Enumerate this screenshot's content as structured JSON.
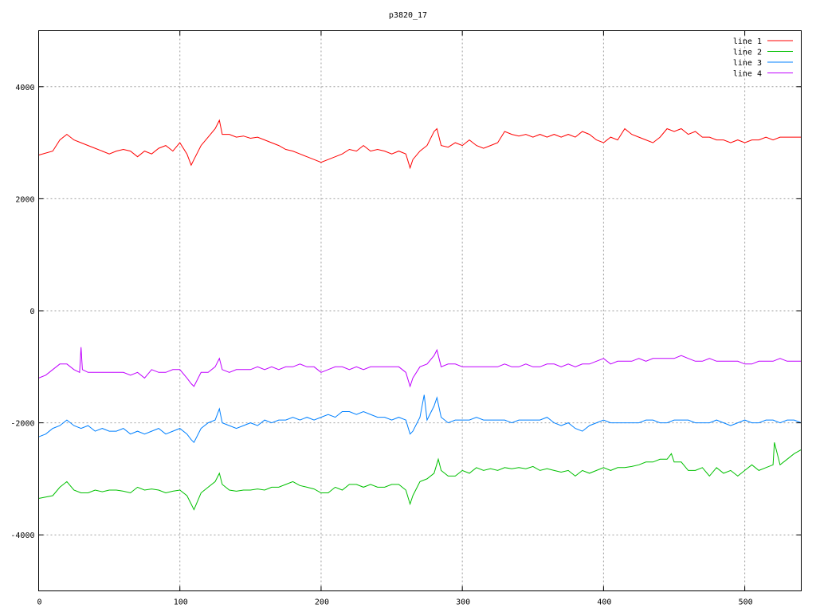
{
  "chart_data": {
    "type": "line",
    "title": "p3820_17",
    "xlabel": "",
    "ylabel": "",
    "xlim": [
      0,
      540
    ],
    "ylim": [
      -5000,
      5000
    ],
    "grid": true,
    "legend_position": "top-right",
    "x_ticks": [
      0,
      100,
      200,
      300,
      400,
      500
    ],
    "x_tick_labels": [
      "0",
      "100",
      "200",
      "300",
      "400",
      "500"
    ],
    "y_ticks": [
      -4000,
      -2000,
      0,
      2000,
      4000
    ],
    "y_tick_labels": [
      "-4000",
      "-2000",
      "0",
      "2000",
      "4000"
    ],
    "series": [
      {
        "name": "line 1",
        "color": "#ff0000",
        "x": [
          0,
          10,
          15,
          20,
          25,
          30,
          35,
          40,
          45,
          50,
          55,
          60,
          65,
          70,
          75,
          80,
          85,
          90,
          95,
          100,
          105,
          108,
          110,
          115,
          120,
          125,
          128,
          130,
          135,
          140,
          145,
          150,
          155,
          160,
          165,
          170,
          175,
          180,
          185,
          190,
          195,
          200,
          205,
          210,
          215,
          220,
          225,
          230,
          235,
          240,
          245,
          250,
          255,
          260,
          263,
          265,
          270,
          275,
          280,
          282,
          285,
          290,
          295,
          300,
          305,
          310,
          315,
          320,
          325,
          330,
          335,
          340,
          345,
          350,
          355,
          360,
          365,
          370,
          375,
          380,
          385,
          390,
          395,
          400,
          405,
          410,
          415,
          420,
          425,
          430,
          435,
          440,
          445,
          450,
          455,
          460,
          465,
          470,
          475,
          480,
          485,
          490,
          495,
          500,
          505,
          510,
          515,
          520,
          525,
          530,
          535,
          540
        ],
        "values": [
          2780,
          2850,
          3050,
          3150,
          3050,
          3000,
          2950,
          2900,
          2850,
          2800,
          2850,
          2880,
          2850,
          2750,
          2850,
          2800,
          2900,
          2950,
          2850,
          3000,
          2800,
          2600,
          2700,
          2950,
          3100,
          3250,
          3400,
          3150,
          3150,
          3100,
          3120,
          3080,
          3100,
          3050,
          3000,
          2950,
          2880,
          2850,
          2800,
          2750,
          2700,
          2650,
          2700,
          2750,
          2800,
          2880,
          2850,
          2950,
          2850,
          2880,
          2850,
          2800,
          2850,
          2800,
          2550,
          2700,
          2850,
          2950,
          3200,
          3250,
          2950,
          2920,
          3000,
          2950,
          3050,
          2950,
          2900,
          2950,
          3000,
          3200,
          3150,
          3120,
          3150,
          3100,
          3150,
          3100,
          3150,
          3100,
          3150,
          3100,
          3200,
          3150,
          3050,
          3000,
          3100,
          3050,
          3250,
          3150,
          3100,
          3050,
          3000,
          3100,
          3250,
          3200,
          3250,
          3150,
          3200,
          3100,
          3100,
          3050,
          3050,
          3000,
          3050,
          3000,
          3050,
          3050,
          3100,
          3050,
          3100,
          3100,
          3100,
          3100
        ]
      },
      {
        "name": "line 2",
        "color": "#00c000",
        "x": [
          0,
          10,
          15,
          20,
          25,
          30,
          35,
          40,
          45,
          50,
          55,
          60,
          65,
          70,
          75,
          80,
          85,
          90,
          95,
          100,
          105,
          108,
          110,
          115,
          120,
          125,
          128,
          130,
          135,
          140,
          145,
          150,
          155,
          160,
          165,
          170,
          175,
          180,
          185,
          190,
          195,
          200,
          205,
          210,
          215,
          220,
          225,
          230,
          235,
          240,
          245,
          250,
          255,
          260,
          263,
          265,
          270,
          275,
          280,
          283,
          285,
          290,
          295,
          300,
          305,
          310,
          315,
          320,
          325,
          330,
          335,
          340,
          345,
          350,
          355,
          360,
          365,
          370,
          375,
          380,
          385,
          390,
          395,
          400,
          405,
          410,
          415,
          420,
          425,
          430,
          435,
          440,
          445,
          448,
          450,
          455,
          460,
          465,
          470,
          475,
          480,
          485,
          490,
          495,
          500,
          505,
          510,
          515,
          520,
          521,
          525,
          530,
          535,
          540
        ],
        "values": [
          -3350,
          -3300,
          -3150,
          -3050,
          -3200,
          -3250,
          -3250,
          -3200,
          -3230,
          -3200,
          -3200,
          -3220,
          -3250,
          -3150,
          -3200,
          -3180,
          -3200,
          -3250,
          -3220,
          -3200,
          -3300,
          -3450,
          -3550,
          -3250,
          -3150,
          -3050,
          -2900,
          -3100,
          -3200,
          -3220,
          -3200,
          -3200,
          -3180,
          -3200,
          -3150,
          -3150,
          -3100,
          -3050,
          -3120,
          -3150,
          -3180,
          -3250,
          -3250,
          -3150,
          -3200,
          -3100,
          -3100,
          -3150,
          -3100,
          -3150,
          -3150,
          -3100,
          -3100,
          -3200,
          -3450,
          -3300,
          -3050,
          -3000,
          -2900,
          -2650,
          -2850,
          -2950,
          -2950,
          -2850,
          -2900,
          -2800,
          -2850,
          -2820,
          -2850,
          -2800,
          -2820,
          -2800,
          -2820,
          -2780,
          -2850,
          -2820,
          -2850,
          -2880,
          -2850,
          -2950,
          -2850,
          -2900,
          -2850,
          -2800,
          -2850,
          -2800,
          -2800,
          -2780,
          -2750,
          -2700,
          -2700,
          -2650,
          -2650,
          -2550,
          -2700,
          -2700,
          -2850,
          -2850,
          -2800,
          -2950,
          -2800,
          -2900,
          -2850,
          -2950,
          -2850,
          -2750,
          -2850,
          -2800,
          -2750,
          -2350,
          -2750,
          -2650,
          -2550,
          -2480
        ]
      },
      {
        "name": "line 3",
        "color": "#0080ff",
        "x": [
          0,
          5,
          10,
          15,
          20,
          25,
          30,
          35,
          40,
          45,
          50,
          55,
          60,
          65,
          70,
          75,
          80,
          85,
          90,
          95,
          100,
          105,
          108,
          110,
          115,
          120,
          125,
          128,
          130,
          135,
          140,
          145,
          150,
          155,
          160,
          165,
          170,
          175,
          180,
          185,
          190,
          195,
          200,
          205,
          210,
          215,
          220,
          225,
          230,
          235,
          240,
          245,
          250,
          255,
          260,
          263,
          265,
          270,
          273,
          275,
          280,
          282,
          285,
          290,
          295,
          300,
          305,
          310,
          315,
          320,
          325,
          330,
          335,
          340,
          345,
          350,
          355,
          360,
          365,
          370,
          375,
          380,
          385,
          390,
          395,
          400,
          405,
          410,
          415,
          420,
          425,
          430,
          435,
          440,
          445,
          450,
          455,
          460,
          465,
          470,
          475,
          480,
          485,
          490,
          495,
          500,
          505,
          510,
          515,
          520,
          525,
          530,
          535,
          540
        ],
        "values": [
          -2250,
          -2200,
          -2100,
          -2050,
          -1950,
          -2050,
          -2100,
          -2050,
          -2150,
          -2100,
          -2150,
          -2150,
          -2100,
          -2200,
          -2150,
          -2200,
          -2150,
          -2100,
          -2200,
          -2150,
          -2100,
          -2200,
          -2300,
          -2350,
          -2100,
          -2000,
          -1950,
          -1750,
          -2000,
          -2050,
          -2100,
          -2050,
          -2000,
          -2050,
          -1950,
          -2000,
          -1950,
          -1950,
          -1900,
          -1950,
          -1900,
          -1950,
          -1900,
          -1850,
          -1900,
          -1800,
          -1800,
          -1850,
          -1800,
          -1850,
          -1900,
          -1900,
          -1950,
          -1900,
          -1950,
          -2200,
          -2150,
          -1900,
          -1500,
          -1950,
          -1700,
          -1550,
          -1900,
          -2000,
          -1950,
          -1950,
          -1950,
          -1900,
          -1950,
          -1950,
          -1950,
          -1950,
          -2000,
          -1950,
          -1950,
          -1950,
          -1950,
          -1900,
          -2000,
          -2050,
          -2000,
          -2100,
          -2150,
          -2050,
          -2000,
          -1950,
          -2000,
          -2000,
          -2000,
          -2000,
          -2000,
          -1950,
          -1950,
          -2000,
          -2000,
          -1950,
          -1950,
          -1950,
          -2000,
          -2000,
          -2000,
          -1950,
          -2000,
          -2050,
          -2000,
          -1950,
          -2000,
          -2000,
          -1950,
          -1950,
          -2000,
          -1950,
          -1950,
          -2000
        ]
      },
      {
        "name": "line 4",
        "color": "#c000ff",
        "x": [
          0,
          5,
          10,
          15,
          20,
          25,
          29,
          30,
          31,
          35,
          40,
          45,
          50,
          55,
          60,
          65,
          70,
          75,
          80,
          85,
          90,
          95,
          100,
          105,
          108,
          110,
          115,
          120,
          125,
          128,
          130,
          135,
          140,
          145,
          150,
          155,
          160,
          165,
          170,
          175,
          180,
          185,
          190,
          195,
          200,
          205,
          210,
          215,
          220,
          225,
          230,
          235,
          240,
          245,
          250,
          255,
          260,
          263,
          265,
          270,
          275,
          280,
          282,
          285,
          290,
          295,
          300,
          305,
          310,
          315,
          320,
          325,
          330,
          335,
          340,
          345,
          350,
          355,
          360,
          365,
          370,
          375,
          380,
          385,
          390,
          395,
          400,
          405,
          410,
          415,
          420,
          425,
          430,
          435,
          440,
          445,
          450,
          455,
          460,
          465,
          470,
          475,
          480,
          485,
          490,
          495,
          500,
          505,
          510,
          515,
          520,
          525,
          530,
          535,
          540
        ],
        "values": [
          -1200,
          -1150,
          -1050,
          -950,
          -950,
          -1050,
          -1100,
          -650,
          -1050,
          -1100,
          -1100,
          -1100,
          -1100,
          -1100,
          -1100,
          -1150,
          -1100,
          -1200,
          -1050,
          -1100,
          -1100,
          -1050,
          -1050,
          -1200,
          -1300,
          -1350,
          -1100,
          -1100,
          -1000,
          -850,
          -1050,
          -1100,
          -1050,
          -1050,
          -1050,
          -1000,
          -1050,
          -1000,
          -1050,
          -1000,
          -1000,
          -950,
          -1000,
          -1000,
          -1100,
          -1050,
          -1000,
          -1000,
          -1050,
          -1000,
          -1050,
          -1000,
          -1000,
          -1000,
          -1000,
          -1000,
          -1100,
          -1350,
          -1200,
          -1000,
          -950,
          -800,
          -700,
          -1000,
          -950,
          -950,
          -1000,
          -1000,
          -1000,
          -1000,
          -1000,
          -1000,
          -950,
          -1000,
          -1000,
          -950,
          -1000,
          -1000,
          -950,
          -950,
          -1000,
          -950,
          -1000,
          -950,
          -950,
          -900,
          -850,
          -950,
          -900,
          -900,
          -900,
          -850,
          -900,
          -850,
          -850,
          -850,
          -850,
          -800,
          -850,
          -900,
          -900,
          -850,
          -900,
          -900,
          -900,
          -900,
          -950,
          -950,
          -900,
          -900,
          -900,
          -850,
          -900,
          -900,
          -900
        ]
      }
    ]
  }
}
